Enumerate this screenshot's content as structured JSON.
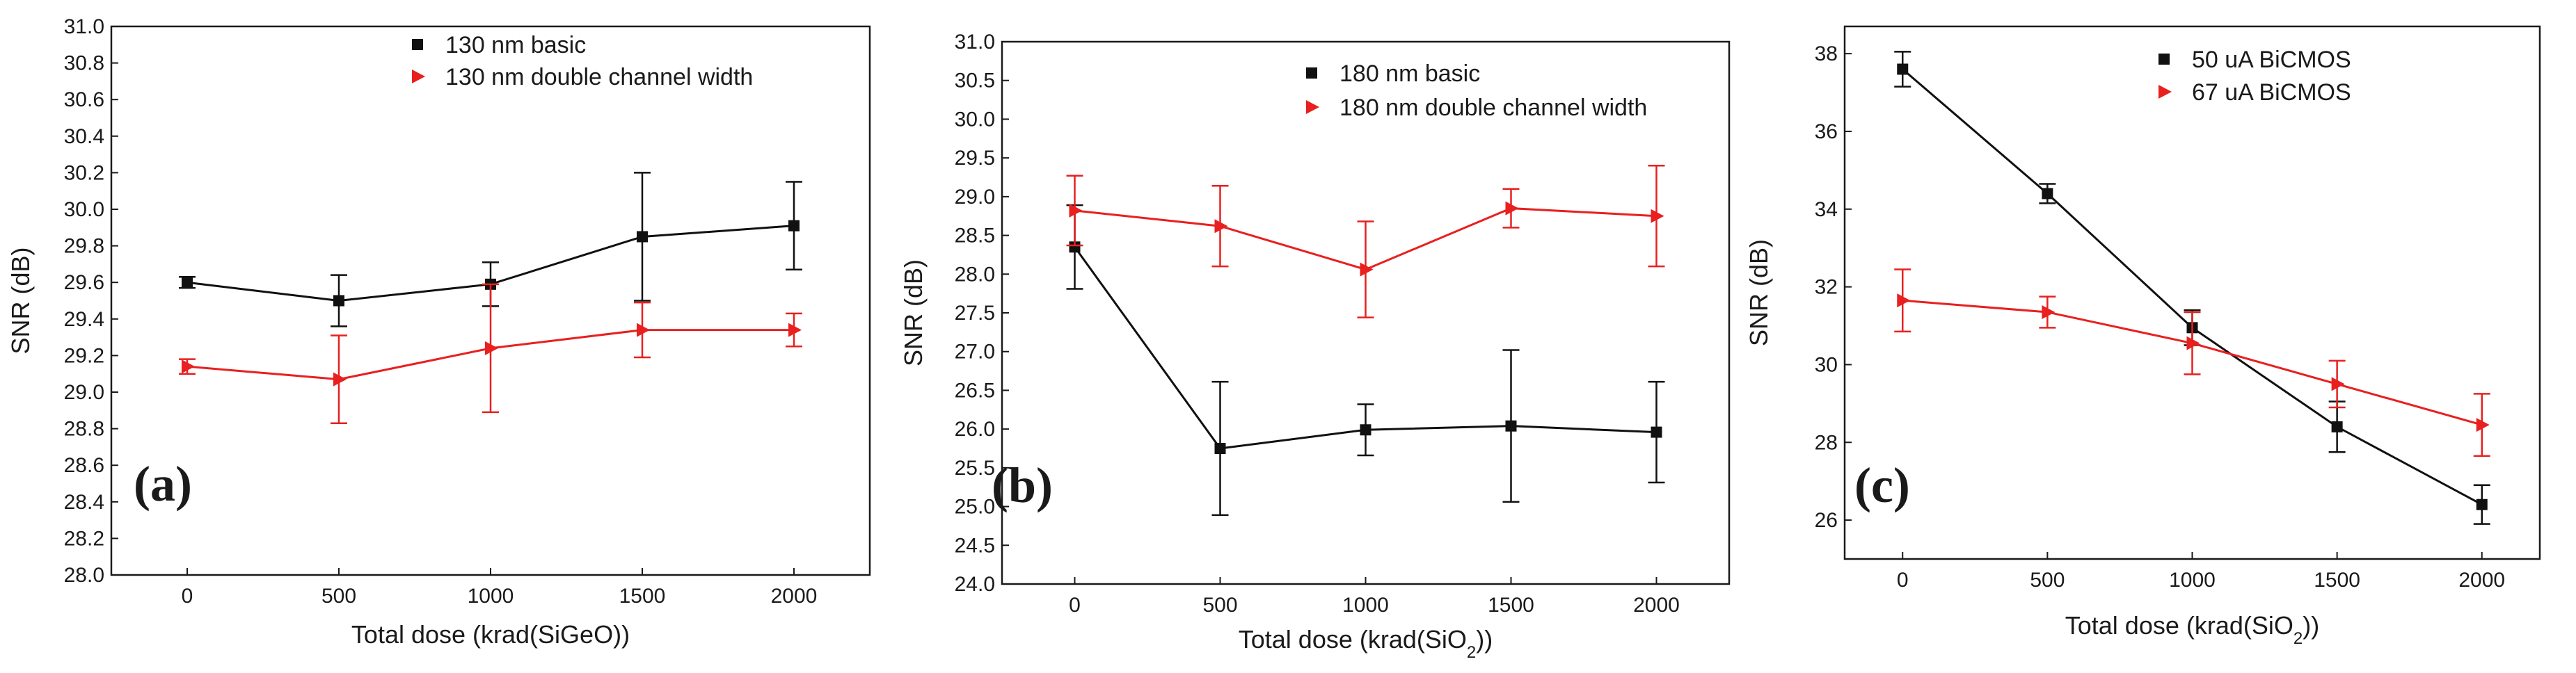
{
  "chart_data": [
    {
      "type": "line",
      "panel_label": "(a)",
      "xlabel": "Total dose (krad(SiGeO))",
      "xlabel_main": "Total dose (krad(SiGeO))",
      "xlabel_sub": "",
      "xlabel_tail": "",
      "ylabel": "SNR (dB)",
      "xlim": [
        -250,
        2250
      ],
      "ylim": [
        28.0,
        31.0
      ],
      "x_ticks": [
        0,
        500,
        1000,
        1500,
        2000
      ],
      "x_tick_labels": [
        "0",
        "500",
        "1000",
        "1500",
        "2000"
      ],
      "y_ticks": [
        28.0,
        28.2,
        28.4,
        28.6,
        28.8,
        29.0,
        29.2,
        29.4,
        29.6,
        29.8,
        30.0,
        30.2,
        30.4,
        30.6,
        30.8,
        31.0
      ],
      "y_tick_labels": [
        "28.0",
        "28.2",
        "28.4",
        "28.6",
        "28.8",
        "29.0",
        "29.2",
        "29.4",
        "29.6",
        "29.8",
        "30.0",
        "30.2",
        "30.4",
        "30.6",
        "30.8",
        "31.0"
      ],
      "legend": "top-right",
      "series": [
        {
          "name": "130 nm basic",
          "color": "#111111",
          "marker": "square",
          "x": [
            0,
            500,
            1000,
            1500,
            2000
          ],
          "values": [
            29.6,
            29.5,
            29.59,
            29.85,
            29.91
          ],
          "errors": [
            0.03,
            0.14,
            0.12,
            0.35,
            0.24
          ]
        },
        {
          "name": "130 nm double channel width",
          "color": "#e8201f",
          "marker": "triangle-right",
          "x": [
            0,
            500,
            1000,
            1500,
            2000
          ],
          "values": [
            29.14,
            29.07,
            29.24,
            29.34,
            29.34
          ],
          "errors": [
            0.04,
            0.24,
            0.35,
            0.15,
            0.09
          ]
        }
      ]
    },
    {
      "type": "line",
      "panel_label": "(b)",
      "xlabel": "Total dose (krad(SiO2))",
      "xlabel_main": "Total dose (krad(SiO",
      "xlabel_sub": "2",
      "xlabel_tail": "))",
      "ylabel": "SNR (dB)",
      "xlim": [
        -250,
        2250
      ],
      "ylim": [
        24.0,
        31.0
      ],
      "x_ticks": [
        0,
        500,
        1000,
        1500,
        2000
      ],
      "x_tick_labels": [
        "0",
        "500",
        "1000",
        "1500",
        "2000"
      ],
      "y_ticks": [
        24.0,
        24.5,
        25.0,
        25.5,
        26.0,
        26.5,
        27.0,
        27.5,
        28.0,
        28.5,
        29.0,
        29.5,
        30.0,
        30.5,
        31.0
      ],
      "y_tick_labels": [
        "24.0",
        "24.5",
        "25.0",
        "25.5",
        "26.0",
        "26.5",
        "27.0",
        "27.5",
        "28.0",
        "28.5",
        "29.0",
        "29.5",
        "30.0",
        "30.5",
        "31.0"
      ],
      "legend": "top-right",
      "series": [
        {
          "name": "180 nm basic",
          "color": "#111111",
          "marker": "square",
          "x": [
            0,
            500,
            1000,
            1500,
            2000
          ],
          "values": [
            28.35,
            25.75,
            25.99,
            26.04,
            25.96
          ],
          "errors": [
            0.54,
            0.86,
            0.33,
            0.98,
            0.65
          ]
        },
        {
          "name": "180 nm double channel width",
          "color": "#e8201f",
          "marker": "triangle-right",
          "x": [
            0,
            500,
            1000,
            1500,
            2000
          ],
          "values": [
            28.82,
            28.62,
            28.06,
            28.85,
            28.75
          ],
          "errors": [
            0.45,
            0.52,
            0.62,
            0.25,
            0.65
          ]
        }
      ]
    },
    {
      "type": "line",
      "panel_label": "(c)",
      "xlabel": "Total dose (krad(SiO2))",
      "xlabel_main": "Total dose (krad(SiO",
      "xlabel_sub": "2",
      "xlabel_tail": "))",
      "ylabel": "SNR (dB)",
      "xlim": [
        -200,
        2200
      ],
      "ylim": [
        25.0,
        38.7
      ],
      "x_ticks": [
        0,
        500,
        1000,
        1500,
        2000
      ],
      "x_tick_labels": [
        "0",
        "500",
        "1000",
        "1500",
        "2000"
      ],
      "y_ticks": [
        26,
        28,
        30,
        32,
        34,
        36,
        38
      ],
      "y_tick_labels": [
        "26",
        "28",
        "30",
        "32",
        "34",
        "36",
        "38"
      ],
      "legend": "top-right",
      "series": [
        {
          "name": "50 uA BiCMOS",
          "color": "#111111",
          "marker": "square",
          "x": [
            0,
            500,
            1000,
            1500,
            2000
          ],
          "values": [
            37.6,
            34.4,
            30.95,
            28.4,
            26.4
          ],
          "errors": [
            0.45,
            0.25,
            0.45,
            0.65,
            0.5
          ]
        },
        {
          "name": "67 uA BiCMOS",
          "color": "#e8201f",
          "marker": "triangle-right",
          "x": [
            0,
            500,
            1000,
            1500,
            2000
          ],
          "values": [
            31.65,
            31.35,
            30.55,
            29.5,
            28.45
          ],
          "errors": [
            0.8,
            0.4,
            0.8,
            0.6,
            0.8
          ]
        }
      ]
    }
  ]
}
